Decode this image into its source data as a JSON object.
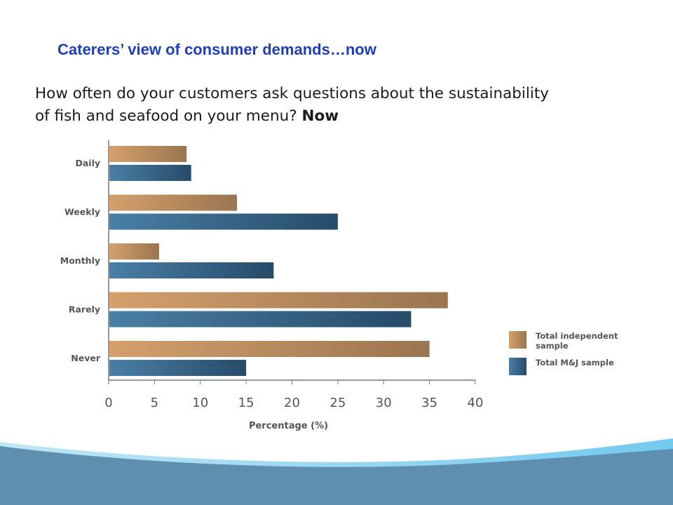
{
  "slide": {
    "title": "Caterers’ view of consumer demands…now",
    "question": "How often do your customers ask questions about the sustainability of fish and seafood on your menu?",
    "question_emphasis": "Now"
  },
  "colors": {
    "title": "#1f3fb8",
    "series_independent": [
      "#d4a06c",
      "#9a7550"
    ],
    "series_mj": [
      "#4a7fa5",
      "#274b69"
    ],
    "axis_text": "#555555",
    "wave_dark": "#5f8fae",
    "wave_light": "#74c8ee"
  },
  "chart_data": {
    "type": "bar",
    "orientation": "horizontal",
    "categories": [
      "Daily",
      "Weekly",
      "Monthly",
      "Rarely",
      "Never"
    ],
    "series": [
      {
        "name": "Total independent sample",
        "values": [
          8.5,
          14,
          5.5,
          37,
          35
        ]
      },
      {
        "name": "Total M&J sample",
        "values": [
          9,
          25,
          18,
          33,
          15
        ]
      }
    ],
    "xlabel": "Percentage (%)",
    "ylabel": "",
    "xlim": [
      0,
      40
    ],
    "xticks": [
      0,
      5,
      10,
      15,
      20,
      25,
      30,
      35,
      40
    ],
    "grid": false,
    "legend_position": "right"
  }
}
